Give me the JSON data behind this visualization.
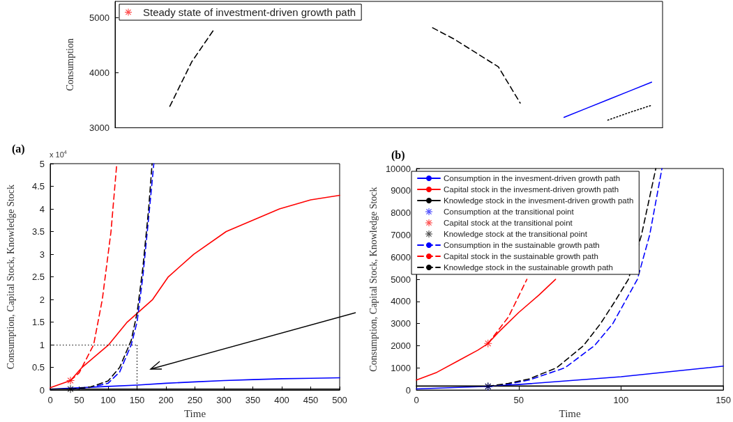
{
  "chart_data": [
    {
      "type": "line",
      "ylabel": "Consumption",
      "categories": [
        null,
        null,
        null,
        null,
        null,
        null,
        null,
        null,
        null,
        null,
        null,
        null,
        null,
        null,
        null,
        null,
        null,
        null,
        null,
        null,
        null,
        null,
        null,
        null,
        null
      ],
      "ylim": [
        3000,
        5300
      ],
      "yticks": [
        3000,
        4000,
        5000
      ],
      "tick_labels": "y",
      "grid": false,
      "legend": "top left",
      "marker": "none",
      "series": [
        {
          "color": "#000000",
          "line_style": "dashed",
          "values": [
            null,
            null,
            3390,
            4200,
            4780,
            null,
            null,
            null,
            null,
            null,
            null,
            null,
            null,
            null,
            4820,
            4610,
            4360,
            4110,
            3450,
            null,
            null,
            null,
            null,
            null,
            null
          ]
        },
        {
          "color": "#0000ff",
          "line_style": "solid",
          "values": [
            null,
            null,
            null,
            null,
            null,
            null,
            null,
            null,
            null,
            null,
            null,
            null,
            null,
            null,
            null,
            null,
            null,
            null,
            null,
            null,
            3190,
            3350,
            3510,
            3670,
            3830
          ]
        },
        {
          "color": "#000000",
          "line_style": "dotted",
          "values": [
            null,
            null,
            null,
            null,
            null,
            null,
            null,
            null,
            null,
            null,
            null,
            null,
            null,
            null,
            null,
            null,
            null,
            null,
            null,
            null,
            null,
            null,
            3140,
            3280,
            3410
          ]
        },
        {
          "name": "Steady state of investment-driven growth path",
          "type": "scatter",
          "marker": "star",
          "color": "#ff0000",
          "values": [
            null,
            null,
            null,
            null,
            null,
            null,
            null,
            null,
            null,
            null,
            null,
            null,
            null,
            null,
            null,
            null,
            null,
            null,
            null,
            null,
            null,
            null,
            null,
            null,
            null
          ]
        }
      ]
    },
    {
      "type": "line",
      "title": "(a)",
      "xlabel": "Time",
      "ylabel": "Consumption, Capital Stock, Knowledge Stock",
      "xlim": [
        0,
        500
      ],
      "xticks": [
        0,
        50,
        100,
        150,
        200,
        250,
        300,
        350,
        400,
        450,
        500
      ],
      "ylim": [
        0,
        5
      ],
      "yticks": [
        0,
        0.5,
        1,
        1.5,
        2,
        2.5,
        3,
        3.5,
        4,
        4.5,
        5
      ],
      "grid": false,
      "marker": "none",
      "annotations": [
        "x 10$^{4}$"
      ],
      "ref_lines": [
        {
          "axis": "y",
          "value": 1,
          "color": "#000000",
          "line_style": "dotted"
        },
        {
          "axis": "x",
          "value": 150,
          "color": "#000000",
          "line_style": "dotted"
        }
      ],
      "series": [
        {
          "color": "#0000ff",
          "line_style": "solid",
          "x": [
            0,
            50,
            100,
            150,
            200,
            250,
            300,
            350,
            400,
            450,
            500
          ],
          "values": [
            0.02,
            0.05,
            0.08,
            0.11,
            0.15,
            0.18,
            0.21,
            0.23,
            0.25,
            0.26,
            0.27
          ]
        },
        {
          "color": "#ff0000",
          "line_style": "solid",
          "x": [
            0,
            35,
            55,
            101,
            133,
            177,
            204,
            248,
            304,
            396,
            450,
            500
          ],
          "values": [
            0.05,
            0.21,
            0.5,
            1,
            1.5,
            2,
            2.5,
            3,
            3.5,
            4,
            4.2,
            4.3
          ]
        },
        {
          "color": "#000000",
          "line_style": "solid",
          "x": [
            0,
            500
          ],
          "values": [
            0.02,
            0.02
          ]
        },
        {
          "type": "scatter",
          "marker": "star",
          "color": "#ff0000",
          "x": [
            35
          ],
          "values": [
            0.21
          ]
        },
        {
          "type": "scatter",
          "marker": "star",
          "color": "#000000",
          "x": [
            35
          ],
          "values": [
            0.02
          ]
        },
        {
          "color": "#0000ff",
          "line_style": "dashed",
          "x": [
            35,
            70,
            100,
            120,
            140,
            150,
            160,
            170,
            179
          ],
          "values": [
            0.02,
            0.06,
            0.15,
            0.4,
            1,
            1.5,
            2.5,
            3.8,
            5
          ]
        },
        {
          "color": "#ff0000",
          "line_style": "dashed",
          "x": [
            35,
            50,
            75,
            90,
            105,
            115
          ],
          "values": [
            0.21,
            0.38,
            1,
            2,
            3.5,
            5
          ]
        },
        {
          "color": "#000000",
          "line_style": "dashed",
          "x": [
            35,
            70,
            100,
            120,
            140,
            150,
            160,
            170,
            176
          ],
          "values": [
            0.02,
            0.07,
            0.2,
            0.5,
            1.1,
            1.7,
            2.7,
            4,
            5
          ]
        }
      ]
    },
    {
      "type": "line",
      "title": "(b)",
      "xlabel": "Time",
      "ylabel": "Consumption, Capital Stock, Knowledge Stock",
      "xlim": [
        0,
        150
      ],
      "xticks": [
        0,
        50,
        100,
        150
      ],
      "ylim": [
        0,
        10000
      ],
      "yticks": [
        0,
        1000,
        2000,
        3000,
        4000,
        5000,
        6000,
        7000,
        8000,
        9000,
        10000
      ],
      "grid": false,
      "legend": "top left",
      "marker": "none",
      "series": [
        {
          "name": "Consumption in the invesment-driven growth path",
          "color": "#0000ff",
          "line_style": "solid",
          "x": [
            0,
            35,
            50,
            100,
            150
          ],
          "values": [
            50,
            170,
            250,
            600,
            1080
          ]
        },
        {
          "name": "Capital stock in the invesment-driven growth path",
          "color": "#ff0000",
          "line_style": "solid",
          "x": [
            0,
            10,
            20,
            30,
            35,
            40,
            50,
            60,
            68
          ],
          "values": [
            450,
            800,
            1300,
            1800,
            2100,
            2600,
            3500,
            4300,
            5000
          ]
        },
        {
          "name": "Knowledge stock in the invesment-driven growth path",
          "color": "#000000",
          "line_style": "solid",
          "x": [
            0,
            150
          ],
          "values": [
            180,
            180
          ]
        },
        {
          "name": "Consumption at the transitional point",
          "type": "scatter",
          "marker": "star",
          "color": "#0000ff",
          "x": [
            35
          ],
          "values": [
            150
          ]
        },
        {
          "name": "Capital stock at the transitional point",
          "type": "scatter",
          "marker": "star",
          "color": "#ff0000",
          "x": [
            35
          ],
          "values": [
            2100
          ]
        },
        {
          "name": "Knowledge stock at the transitional point",
          "type": "scatter",
          "marker": "star",
          "color": "#000000",
          "x": [
            35
          ],
          "values": [
            170
          ]
        },
        {
          "name": "Consumption in the sustainable growth path",
          "color": "#0000ff",
          "line_style": "dashed",
          "x": [
            35,
            45,
            55,
            72.5,
            87,
            96,
            102,
            108,
            114,
            120
          ],
          "values": [
            150,
            270,
            450,
            1000,
            2000,
            3000,
            4000,
            5000,
            7000,
            10000
          ]
        },
        {
          "name": "Capital stock in the sustainable growth path",
          "color": "#ff0000",
          "line_style": "dashed",
          "x": [
            35,
            45,
            54
          ],
          "values": [
            2100,
            3300,
            5000
          ]
        },
        {
          "name": "Knowledge stock in the sustainable growth path",
          "color": "#000000",
          "line_style": "dashed",
          "x": [
            35,
            45,
            55,
            68.5,
            81.6,
            90,
            97,
            103.6,
            110,
            117
          ],
          "values": [
            170,
            300,
            500,
            1000,
            2000,
            3000,
            4000,
            5000,
            7000,
            10000
          ]
        }
      ]
    }
  ]
}
